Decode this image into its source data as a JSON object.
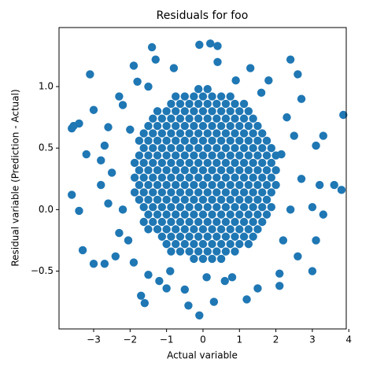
{
  "chart_data": {
    "type": "scatter",
    "title": "Residuals for foo",
    "x_label": "Actual variable",
    "y_label": "Residual variable (Prediction - Actual)",
    "color": "#1f77b4",
    "xlim": [
      -3.95,
      3.93
    ],
    "ylim": [
      -0.97,
      1.48
    ],
    "xticks": [
      {
        "value": -3,
        "label": "−3"
      },
      {
        "value": -2,
        "label": "−2"
      },
      {
        "value": -1,
        "label": "−1"
      },
      0,
      1,
      2,
      3,
      4
    ],
    "yticks": [
      {
        "value": -0.5,
        "label": "−0.5"
      },
      {
        "value": 0,
        "label": "0.0"
      },
      {
        "value": 0.5,
        "label": "0.5"
      },
      {
        "value": 1,
        "label": "1.0"
      }
    ],
    "points": [
      [
        -0.25,
        -0.4
      ],
      [
        0,
        -0.4
      ],
      [
        0.25,
        -0.4
      ],
      [
        0.5,
        -0.4
      ],
      [
        -0.875,
        -0.34
      ],
      [
        -0.625,
        -0.34
      ],
      [
        -0.375,
        -0.34
      ],
      [
        -0.125,
        -0.34
      ],
      [
        0.125,
        -0.34
      ],
      [
        0.375,
        -0.34
      ],
      [
        0.625,
        -0.34
      ],
      [
        0.875,
        -0.34
      ],
      [
        -1,
        -0.28
      ],
      [
        -0.75,
        -0.28
      ],
      [
        -0.5,
        -0.28
      ],
      [
        -0.25,
        -0.28
      ],
      [
        0,
        -0.28
      ],
      [
        0.25,
        -0.28
      ],
      [
        0.5,
        -0.28
      ],
      [
        0.75,
        -0.28
      ],
      [
        1,
        -0.28
      ],
      [
        1.25,
        -0.28
      ],
      [
        -1.125,
        -0.22
      ],
      [
        -0.875,
        -0.22
      ],
      [
        -0.625,
        -0.22
      ],
      [
        -0.375,
        -0.22
      ],
      [
        -0.125,
        -0.22
      ],
      [
        0.125,
        -0.22
      ],
      [
        0.375,
        -0.22
      ],
      [
        0.625,
        -0.22
      ],
      [
        0.875,
        -0.22
      ],
      [
        1.125,
        -0.22
      ],
      [
        1.375,
        -0.22
      ],
      [
        -1.5,
        -0.16
      ],
      [
        -1.25,
        -0.16
      ],
      [
        -1,
        -0.16
      ],
      [
        -0.75,
        -0.16
      ],
      [
        -0.5,
        -0.16
      ],
      [
        -0.25,
        -0.16
      ],
      [
        0,
        -0.16
      ],
      [
        0.25,
        -0.16
      ],
      [
        0.5,
        -0.16
      ],
      [
        0.75,
        -0.16
      ],
      [
        1,
        -0.16
      ],
      [
        1.25,
        -0.16
      ],
      [
        1.5,
        -0.16
      ],
      [
        -1.625,
        -0.1
      ],
      [
        -1.375,
        -0.1
      ],
      [
        -1.125,
        -0.1
      ],
      [
        -0.875,
        -0.1
      ],
      [
        -0.625,
        -0.1
      ],
      [
        -0.375,
        -0.1
      ],
      [
        -0.125,
        -0.1
      ],
      [
        0.125,
        -0.1
      ],
      [
        0.375,
        -0.1
      ],
      [
        0.625,
        -0.1
      ],
      [
        0.875,
        -0.1
      ],
      [
        1.125,
        -0.1
      ],
      [
        1.375,
        -0.1
      ],
      [
        1.625,
        -0.1
      ],
      [
        -1.5,
        -0.04
      ],
      [
        -1.25,
        -0.04
      ],
      [
        -1,
        -0.04
      ],
      [
        -0.75,
        -0.04
      ],
      [
        -0.5,
        -0.04
      ],
      [
        -0.25,
        -0.04
      ],
      [
        0,
        -0.04
      ],
      [
        0.25,
        -0.04
      ],
      [
        0.5,
        -0.04
      ],
      [
        0.75,
        -0.04
      ],
      [
        1,
        -0.04
      ],
      [
        1.25,
        -0.04
      ],
      [
        1.5,
        -0.04
      ],
      [
        1.75,
        -0.04
      ],
      [
        -1.625,
        0.02
      ],
      [
        -1.375,
        0.02
      ],
      [
        -1.125,
        0.02
      ],
      [
        -0.875,
        0.02
      ],
      [
        -0.625,
        0.02
      ],
      [
        -0.375,
        0.02
      ],
      [
        -0.125,
        0.02
      ],
      [
        0.125,
        0.02
      ],
      [
        0.375,
        0.02
      ],
      [
        0.625,
        0.02
      ],
      [
        0.875,
        0.02
      ],
      [
        1.125,
        0.02
      ],
      [
        1.375,
        0.02
      ],
      [
        1.625,
        0.02
      ],
      [
        1.875,
        0.02
      ],
      [
        -1.75,
        0.08
      ],
      [
        -1.5,
        0.08
      ],
      [
        -1.25,
        0.08
      ],
      [
        -1,
        0.08
      ],
      [
        -0.75,
        0.08
      ],
      [
        -0.5,
        0.08
      ],
      [
        -0.25,
        0.08
      ],
      [
        0,
        0.08
      ],
      [
        0.25,
        0.08
      ],
      [
        0.5,
        0.08
      ],
      [
        0.75,
        0.08
      ],
      [
        1,
        0.08
      ],
      [
        1.25,
        0.08
      ],
      [
        1.5,
        0.08
      ],
      [
        1.75,
        0.08
      ],
      [
        -1.875,
        0.14
      ],
      [
        -1.625,
        0.14
      ],
      [
        -1.375,
        0.14
      ],
      [
        -1.125,
        0.14
      ],
      [
        -0.875,
        0.14
      ],
      [
        -0.625,
        0.14
      ],
      [
        -0.375,
        0.14
      ],
      [
        -0.125,
        0.14
      ],
      [
        0.125,
        0.14
      ],
      [
        0.375,
        0.14
      ],
      [
        0.625,
        0.14
      ],
      [
        0.875,
        0.14
      ],
      [
        1.125,
        0.14
      ],
      [
        1.375,
        0.14
      ],
      [
        1.625,
        0.14
      ],
      [
        1.875,
        0.14
      ],
      [
        -1.75,
        0.2
      ],
      [
        -1.5,
        0.2
      ],
      [
        -1.25,
        0.2
      ],
      [
        -1,
        0.2
      ],
      [
        -0.75,
        0.2
      ],
      [
        -0.5,
        0.2
      ],
      [
        -0.25,
        0.2
      ],
      [
        0,
        0.2
      ],
      [
        0.25,
        0.2
      ],
      [
        0.5,
        0.2
      ],
      [
        0.75,
        0.2
      ],
      [
        1,
        0.2
      ],
      [
        1.25,
        0.2
      ],
      [
        1.5,
        0.2
      ],
      [
        1.75,
        0.2
      ],
      [
        2,
        0.2
      ],
      [
        -1.875,
        0.26
      ],
      [
        -1.625,
        0.26
      ],
      [
        -1.375,
        0.26
      ],
      [
        -1.125,
        0.26
      ],
      [
        -0.875,
        0.26
      ],
      [
        -0.625,
        0.26
      ],
      [
        -0.375,
        0.26
      ],
      [
        -0.125,
        0.26
      ],
      [
        0.125,
        0.26
      ],
      [
        0.375,
        0.26
      ],
      [
        0.625,
        0.26
      ],
      [
        0.875,
        0.26
      ],
      [
        1.125,
        0.26
      ],
      [
        1.375,
        0.26
      ],
      [
        1.625,
        0.26
      ],
      [
        1.875,
        0.26
      ],
      [
        -1.75,
        0.32
      ],
      [
        -1.5,
        0.32
      ],
      [
        -1.25,
        0.32
      ],
      [
        -1,
        0.32
      ],
      [
        -0.75,
        0.32
      ],
      [
        -0.5,
        0.32
      ],
      [
        -0.25,
        0.32
      ],
      [
        0,
        0.32
      ],
      [
        0.25,
        0.32
      ],
      [
        0.5,
        0.32
      ],
      [
        0.75,
        0.32
      ],
      [
        1,
        0.32
      ],
      [
        1.25,
        0.32
      ],
      [
        1.5,
        0.32
      ],
      [
        1.75,
        0.32
      ],
      [
        2,
        0.32
      ],
      [
        -1.875,
        0.38
      ],
      [
        -1.625,
        0.38
      ],
      [
        -1.375,
        0.38
      ],
      [
        -1.125,
        0.38
      ],
      [
        -0.875,
        0.38
      ],
      [
        -0.625,
        0.38
      ],
      [
        -0.375,
        0.38
      ],
      [
        -0.125,
        0.38
      ],
      [
        0.125,
        0.38
      ],
      [
        0.375,
        0.38
      ],
      [
        0.625,
        0.38
      ],
      [
        0.875,
        0.38
      ],
      [
        1.125,
        0.38
      ],
      [
        1.375,
        0.38
      ],
      [
        1.625,
        0.38
      ],
      [
        1.875,
        0.38
      ],
      [
        -1.75,
        0.44
      ],
      [
        -1.5,
        0.44
      ],
      [
        -1.25,
        0.44
      ],
      [
        -1,
        0.44
      ],
      [
        -0.75,
        0.44
      ],
      [
        -0.5,
        0.44
      ],
      [
        -0.25,
        0.44
      ],
      [
        0,
        0.44
      ],
      [
        0.25,
        0.44
      ],
      [
        0.5,
        0.44
      ],
      [
        0.75,
        0.44
      ],
      [
        1,
        0.44
      ],
      [
        1.25,
        0.44
      ],
      [
        1.5,
        0.44
      ],
      [
        1.75,
        0.44
      ],
      [
        2,
        0.44
      ],
      [
        -1.625,
        0.5
      ],
      [
        -1.375,
        0.5
      ],
      [
        -1.125,
        0.5
      ],
      [
        -0.875,
        0.5
      ],
      [
        -0.625,
        0.5
      ],
      [
        -0.375,
        0.5
      ],
      [
        -0.125,
        0.5
      ],
      [
        0.125,
        0.5
      ],
      [
        0.375,
        0.5
      ],
      [
        0.625,
        0.5
      ],
      [
        0.875,
        0.5
      ],
      [
        1.125,
        0.5
      ],
      [
        1.375,
        0.5
      ],
      [
        1.625,
        0.5
      ],
      [
        1.875,
        0.5
      ],
      [
        -1.75,
        0.56
      ],
      [
        -1.5,
        0.56
      ],
      [
        -1.25,
        0.56
      ],
      [
        -1,
        0.56
      ],
      [
        -0.75,
        0.56
      ],
      [
        -0.5,
        0.56
      ],
      [
        -0.25,
        0.56
      ],
      [
        0,
        0.56
      ],
      [
        0.25,
        0.56
      ],
      [
        0.5,
        0.56
      ],
      [
        0.75,
        0.56
      ],
      [
        1,
        0.56
      ],
      [
        1.25,
        0.56
      ],
      [
        1.5,
        0.56
      ],
      [
        1.75,
        0.56
      ],
      [
        -1.625,
        0.62
      ],
      [
        -1.375,
        0.62
      ],
      [
        -1.125,
        0.62
      ],
      [
        -0.875,
        0.62
      ],
      [
        -0.625,
        0.62
      ],
      [
        -0.375,
        0.62
      ],
      [
        -0.125,
        0.62
      ],
      [
        0.125,
        0.62
      ],
      [
        0.375,
        0.62
      ],
      [
        0.625,
        0.62
      ],
      [
        0.875,
        0.62
      ],
      [
        1.125,
        0.62
      ],
      [
        1.375,
        0.62
      ],
      [
        1.625,
        0.62
      ],
      [
        -1.5,
        0.68
      ],
      [
        -1.25,
        0.68
      ],
      [
        -1,
        0.68
      ],
      [
        -0.75,
        0.68
      ],
      [
        -0.5,
        0.68
      ],
      [
        -0.25,
        0.68
      ],
      [
        0,
        0.68
      ],
      [
        0.25,
        0.68
      ],
      [
        0.5,
        0.68
      ],
      [
        0.75,
        0.68
      ],
      [
        1,
        0.68
      ],
      [
        1.25,
        0.68
      ],
      [
        1.5,
        0.68
      ],
      [
        -1.375,
        0.74
      ],
      [
        -1.125,
        0.74
      ],
      [
        -0.875,
        0.74
      ],
      [
        -0.625,
        0.74
      ],
      [
        -0.375,
        0.74
      ],
      [
        -0.125,
        0.74
      ],
      [
        0.125,
        0.74
      ],
      [
        0.375,
        0.74
      ],
      [
        0.625,
        0.74
      ],
      [
        0.875,
        0.74
      ],
      [
        1.125,
        0.74
      ],
      [
        1.375,
        0.74
      ],
      [
        -1.25,
        0.8
      ],
      [
        -1,
        0.8
      ],
      [
        -0.75,
        0.8
      ],
      [
        -0.5,
        0.8
      ],
      [
        -0.25,
        0.8
      ],
      [
        0,
        0.8
      ],
      [
        0.25,
        0.8
      ],
      [
        0.5,
        0.8
      ],
      [
        0.75,
        0.8
      ],
      [
        1,
        0.8
      ],
      [
        1.25,
        0.8
      ],
      [
        -0.875,
        0.86
      ],
      [
        -0.625,
        0.86
      ],
      [
        -0.375,
        0.86
      ],
      [
        -0.125,
        0.86
      ],
      [
        0.125,
        0.86
      ],
      [
        0.375,
        0.86
      ],
      [
        0.625,
        0.86
      ],
      [
        0.875,
        0.86
      ],
      [
        1.125,
        0.86
      ],
      [
        -0.75,
        0.92
      ],
      [
        -0.5,
        0.92
      ],
      [
        -0.25,
        0.92
      ],
      [
        0,
        0.92
      ],
      [
        0.25,
        0.92
      ],
      [
        0.5,
        0.92
      ],
      [
        0.75,
        0.92
      ],
      [
        -0.125,
        0.98
      ],
      [
        0.125,
        0.98
      ],
      [
        -3.6,
        0.66
      ],
      [
        -3.55,
        0.68
      ],
      [
        -3.4,
        0.7
      ],
      [
        -3.1,
        1.1
      ],
      [
        -3,
        0.81
      ],
      [
        -3.6,
        0.12
      ],
      [
        -3.4,
        -0.01
      ],
      [
        -3.3,
        -0.33
      ],
      [
        -3,
        -0.44
      ],
      [
        -3.2,
        0.45
      ],
      [
        -2.7,
        -0.44
      ],
      [
        -2.6,
        0.05
      ],
      [
        -2.4,
        -0.38
      ],
      [
        -2.3,
        -0.19
      ],
      [
        -1.9,
        -0.43
      ],
      [
        -1.5,
        -0.53
      ],
      [
        -1.7,
        -0.7
      ],
      [
        -1.6,
        -0.76
      ],
      [
        -1.2,
        -0.58
      ],
      [
        -1,
        -0.64
      ],
      [
        -0.4,
        -0.78
      ],
      [
        -0.1,
        -0.86
      ],
      [
        -0.5,
        -0.65
      ],
      [
        0.3,
        -0.75
      ],
      [
        0.6,
        -0.58
      ],
      [
        1.2,
        -0.73
      ],
      [
        1.5,
        -0.64
      ],
      [
        2.1,
        -0.52
      ],
      [
        2.1,
        -0.62
      ],
      [
        3,
        -0.5
      ],
      [
        3.1,
        -0.25
      ],
      [
        2.6,
        -0.38
      ],
      [
        3.3,
        -0.04
      ],
      [
        3,
        0.02
      ],
      [
        3.2,
        0.2
      ],
      [
        3.8,
        0.16
      ],
      [
        3.6,
        0.2
      ],
      [
        3.85,
        0.77
      ],
      [
        3.3,
        0.6
      ],
      [
        3.1,
        0.52
      ],
      [
        2.7,
        0.9
      ],
      [
        2.6,
        1.1
      ],
      [
        2.4,
        1.22
      ],
      [
        1.8,
        1.05
      ],
      [
        1.3,
        1.15
      ],
      [
        0.9,
        1.05
      ],
      [
        0.2,
        1.35
      ],
      [
        0.4,
        1.33
      ],
      [
        -0.1,
        1.34
      ],
      [
        -1.4,
        1.32
      ],
      [
        -1.3,
        1.22
      ],
      [
        -1.9,
        1.17
      ],
      [
        -1.8,
        1.04
      ],
      [
        -2.3,
        0.92
      ],
      [
        -2.2,
        0.85
      ],
      [
        -2.6,
        0.67
      ],
      [
        -2.7,
        0.52
      ],
      [
        -2.8,
        0.4
      ],
      [
        -2.8,
        0.2
      ],
      [
        -2.5,
        0.3
      ],
      [
        2.5,
        0.6
      ],
      [
        2.7,
        0.25
      ],
      [
        2.3,
        0.75
      ],
      [
        -2.2,
        0
      ],
      [
        -2.05,
        -0.25
      ],
      [
        2.2,
        -0.25
      ],
      [
        2.4,
        0
      ],
      [
        -0.8,
        1.15
      ],
      [
        0.4,
        1.2
      ],
      [
        -1.5,
        1
      ],
      [
        1.6,
        0.95
      ],
      [
        -2,
        0.65
      ],
      [
        2.15,
        0.45
      ],
      [
        0.8,
        -0.55
      ],
      [
        -0.9,
        -0.5
      ],
      [
        0.1,
        -0.55
      ]
    ]
  }
}
